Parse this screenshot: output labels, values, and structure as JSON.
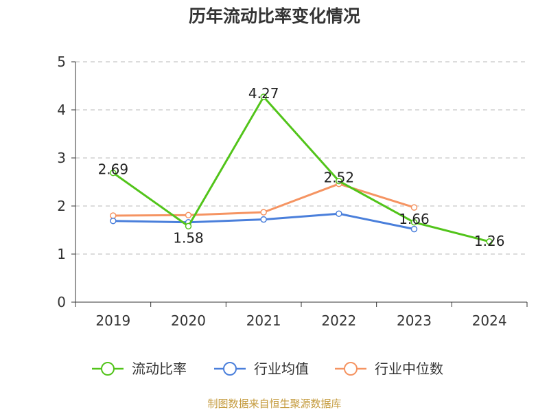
{
  "chart_data": {
    "type": "line",
    "title": "历年流动比率变化情况",
    "categories": [
      "2019",
      "2020",
      "2021",
      "2022",
      "2023",
      "2024"
    ],
    "ylim": [
      0,
      5
    ],
    "yticks": [
      0,
      1,
      2,
      3,
      4,
      5
    ],
    "xlabel": "",
    "ylabel": "",
    "grid": true,
    "legend_position": "bottom",
    "series": [
      {
        "name": "流动比率",
        "color": "#52c41a",
        "values": [
          2.69,
          1.58,
          4.27,
          2.52,
          1.66,
          1.26
        ],
        "labels": [
          "2.69",
          "1.58",
          "4.27",
          "2.52",
          "1.66",
          "1.26"
        ]
      },
      {
        "name": "行业均值",
        "color": "#4a7fdb",
        "values": [
          1.69,
          1.66,
          1.72,
          1.84,
          1.52,
          null
        ]
      },
      {
        "name": "行业中位数",
        "color": "#f59462",
        "values": [
          1.8,
          1.81,
          1.87,
          2.46,
          1.97,
          null
        ]
      }
    ]
  },
  "source": {
    "text": "制图数据来自恒生聚源数据库",
    "color": "#c49a3c"
  }
}
